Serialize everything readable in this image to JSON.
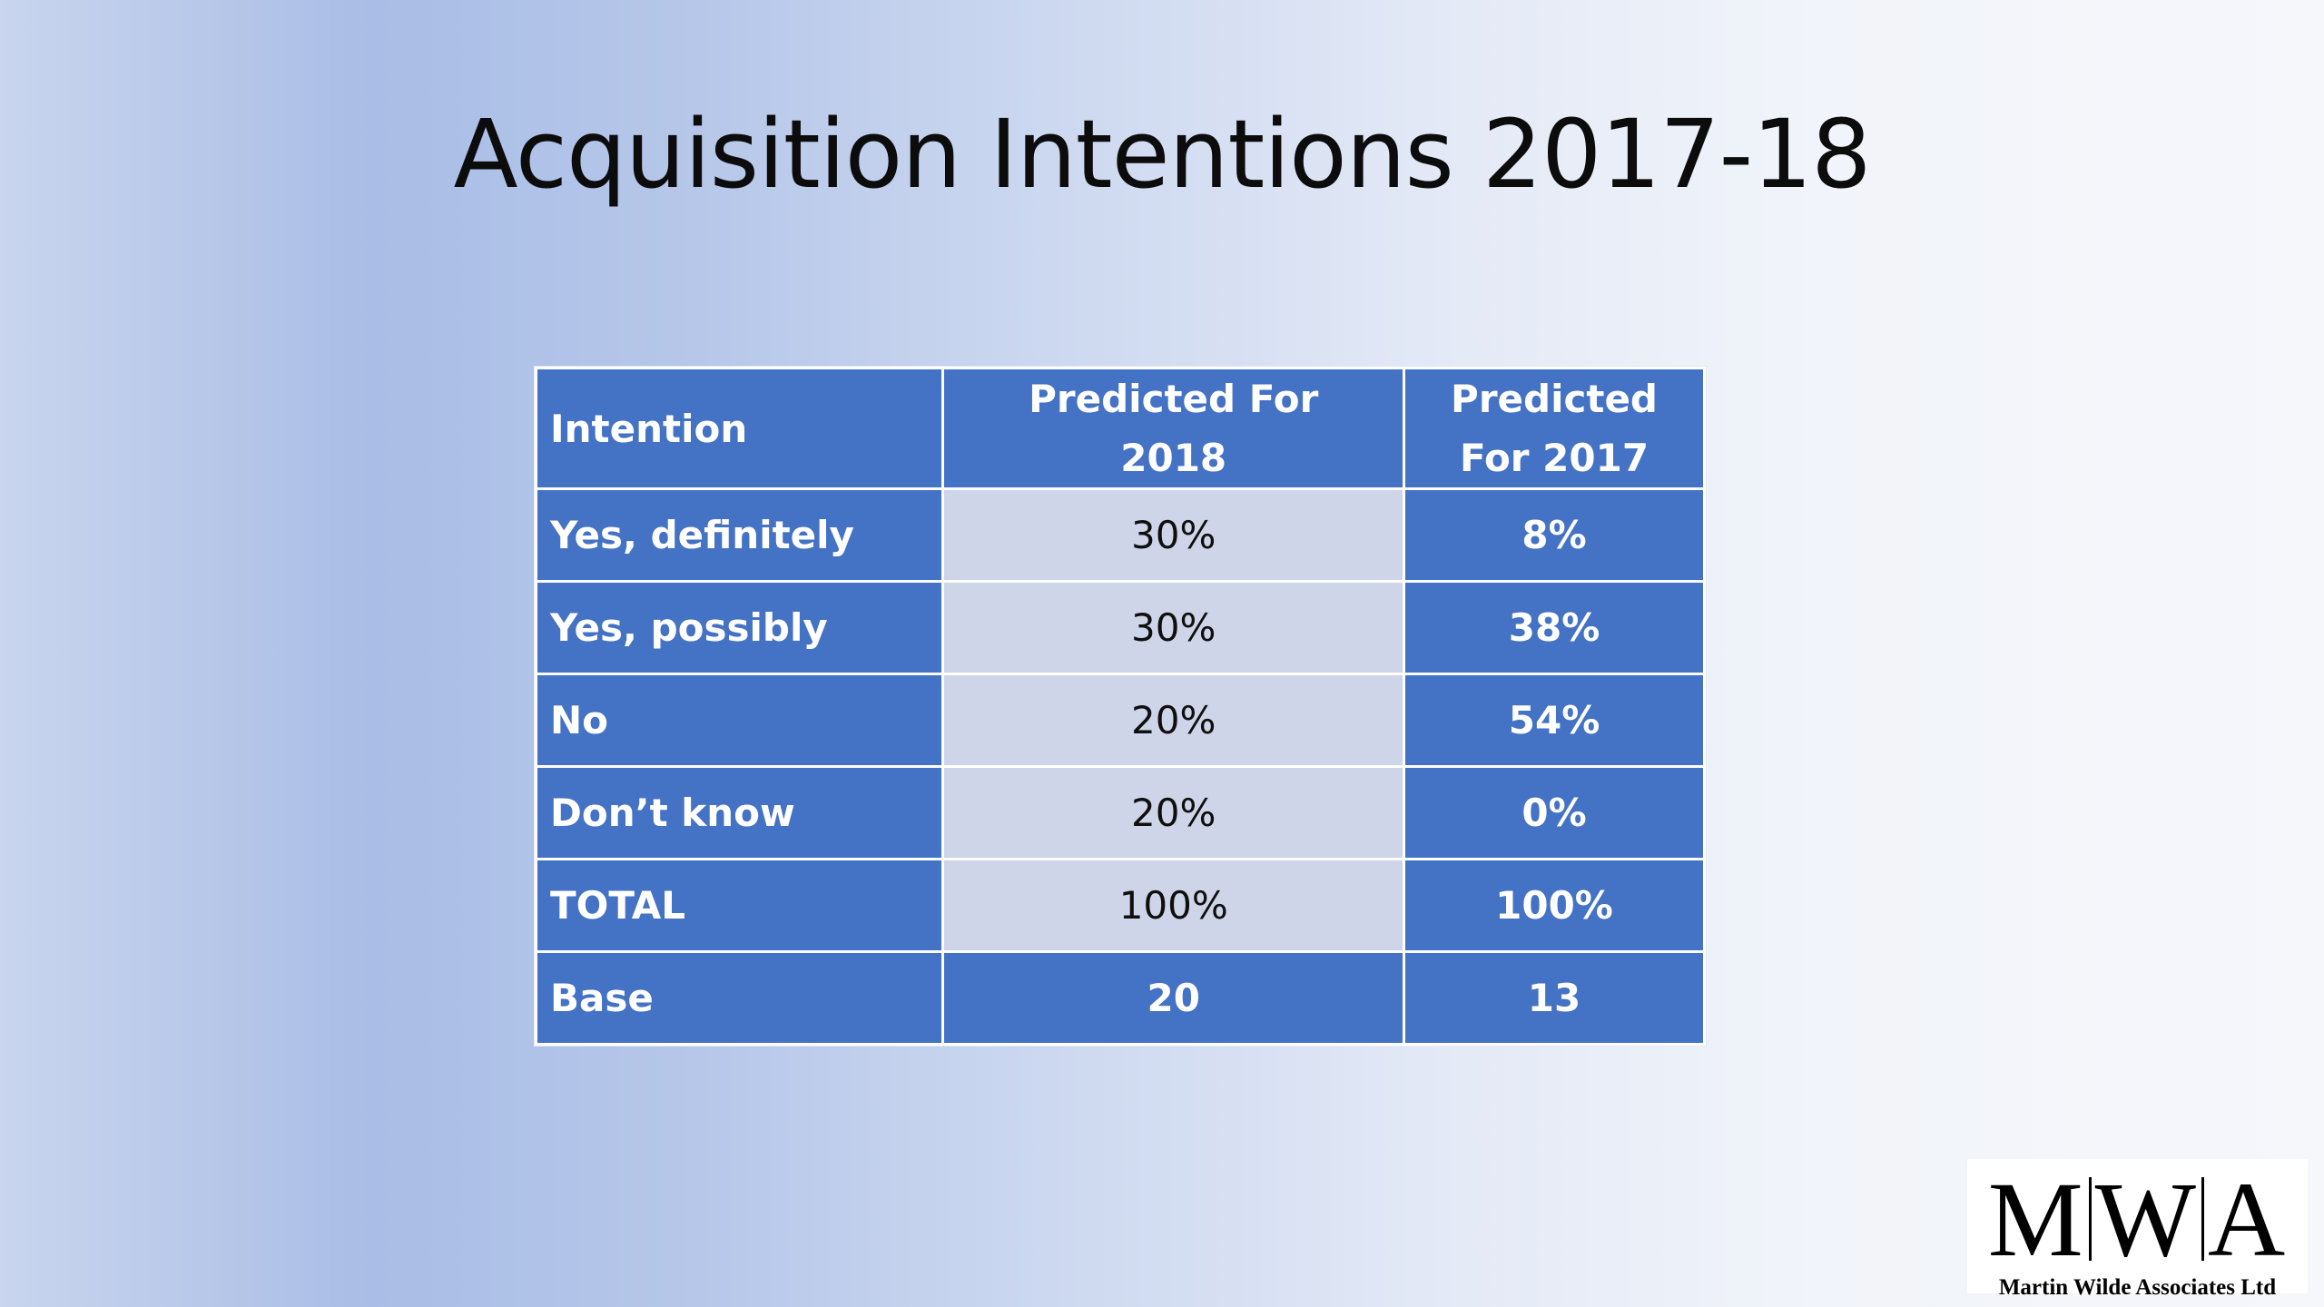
{
  "title": "Acquisition Intentions 2017-18",
  "table": {
    "headers": [
      "Intention",
      "Predicted For 2018",
      "Predicted For 2017"
    ],
    "rows": [
      [
        "Yes, definitely",
        "30%",
        "8%"
      ],
      [
        "Yes, possibly",
        "30%",
        "38%"
      ],
      [
        "No",
        "20%",
        "54%"
      ],
      [
        "Don’t know",
        "20%",
        "0%"
      ],
      [
        "TOTAL",
        "100%",
        "100%"
      ],
      [
        "Base",
        "20",
        "13"
      ]
    ]
  },
  "logo": {
    "letters": [
      "M",
      "W",
      "A"
    ],
    "company": "Martin Wilde Associates Ltd"
  },
  "colors": {
    "cell_blue": "#4472c4",
    "cell_light": "#cfd5e8",
    "header_text": "#ffffff"
  }
}
